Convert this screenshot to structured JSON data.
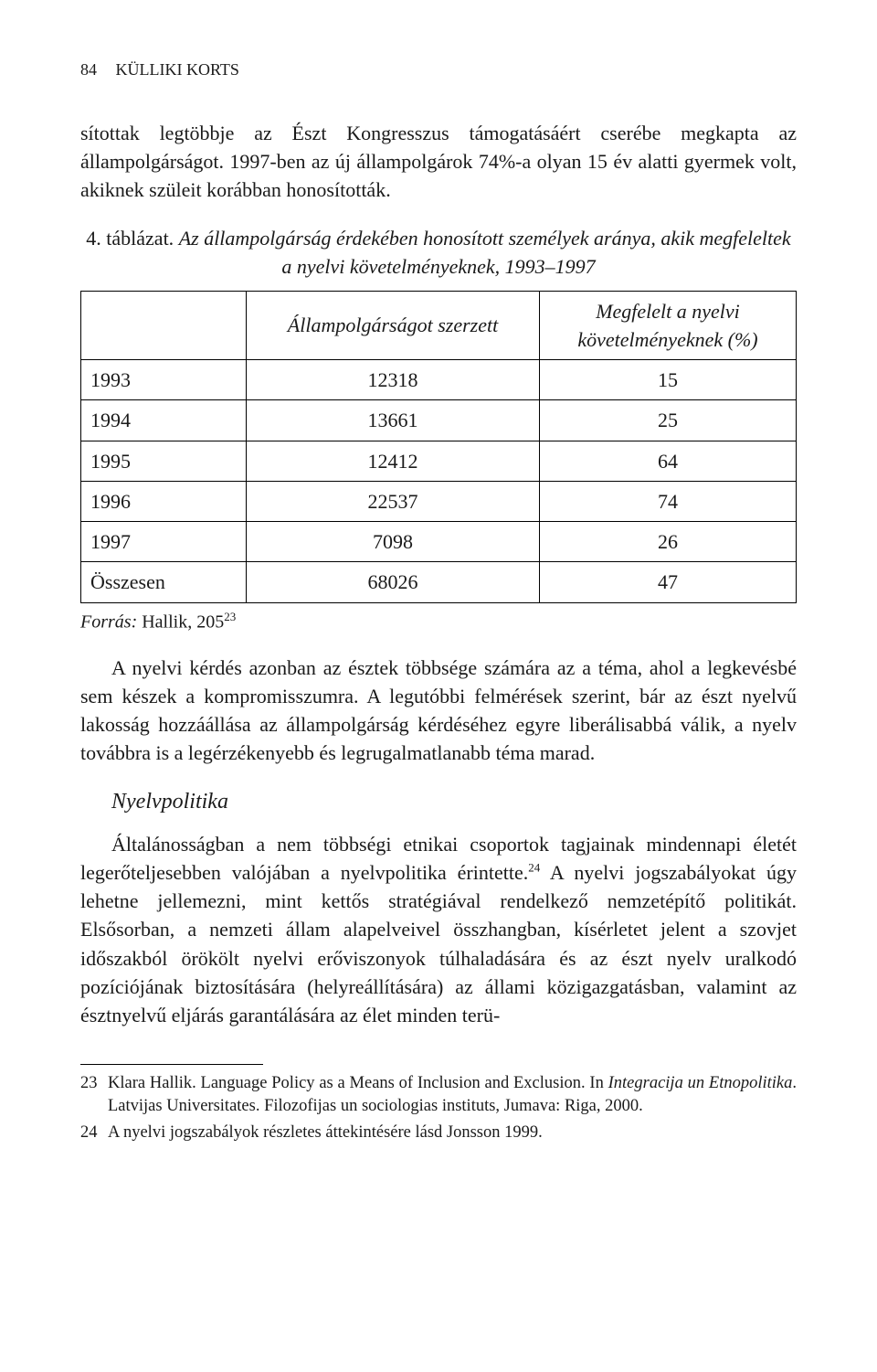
{
  "running_head": {
    "page_number": "84",
    "author": "KÜLLIKI KORTS"
  },
  "paragraphs": {
    "p1": "sítottak legtöbbje az Észt Kongresszus támogatásáért cserébe megkapta az állampolgárságot. 1997-ben az új állampolgárok 74%-a olyan 15 év alatti gyermek volt, akiknek szüleit korábban honosították.",
    "p2": "A nyelvi kérdés azonban az észtek többsége számára az a téma, ahol a legkevésbé sem készek a kompromisszumra. A legutóbbi felmérések szerint, bár az észt nyelvű lakosság hozzáállása az állampolgárság kérdéséhez egyre liberálisabbá válik, a nyelv továbbra is a legérzékenyebb és legrugalmatlanabb téma marad.",
    "p3a": "Általánosságban a nem többségi etnikai csoportok tagjainak mindennapi életét legerőteljesebben valójában a nyelvpolitika érintette.",
    "p3b": " A nyelvi jogszabályokat úgy lehetne jellemezni, mint kettős stratégiával rendelkező nemzetépítő politikát. Elsősorban, a nemzeti állam alapelveivel összhangban, kísérletet jelent a szovjet időszakból örökölt nyelvi erőviszonyok túlhaladására és az észt nyelv uralkodó pozíciójának biztosítására (helyreállítására) az állami közigazgatásban, valamint az észtnyelvű eljárás garantálására az élet minden terü-"
  },
  "table": {
    "caption_number": "4. táblázat.",
    "caption_title": "Az állampolgárság érdekében honosított személyek aránya, akik megfeleltek a nyelvi követelményeknek, 1993–1997",
    "col_a": "Állampolgárságot szerzett",
    "col_b": "Megfelelt a nyelvi követelményeknek (%)",
    "rows": [
      {
        "year": "1993",
        "a": "12318",
        "b": "15"
      },
      {
        "year": "1994",
        "a": "13661",
        "b": "25"
      },
      {
        "year": "1995",
        "a": "12412",
        "b": "64"
      },
      {
        "year": "1996",
        "a": "22537",
        "b": "74"
      },
      {
        "year": "1997",
        "a": "7098",
        "b": "26"
      },
      {
        "year": "Összesen",
        "a": "68026",
        "b": "47"
      }
    ],
    "source_label": "Forrás:",
    "source_text": "Hallik, 205",
    "source_note_ref": "23"
  },
  "subheading": "Nyelvpolitika",
  "inline_note_ref": "24",
  "footnotes": [
    {
      "num": "23",
      "text_pre": "Klara Hallik. Language Policy as a Means of Inclusion and Exclusion. In ",
      "text_it": "Integracija un Etnopolitika",
      "text_post": ". Latvijas Universitates. Filozofijas un sociologias instituts, Jumava: Riga, 2000."
    },
    {
      "num": "24",
      "text_pre": "A nyelvi jogszabályok részletes áttekintésére lásd Jonsson 1999.",
      "text_it": "",
      "text_post": ""
    }
  ],
  "colors": {
    "text": "#1a1a1a",
    "background": "#ffffff",
    "border": "#000000"
  }
}
